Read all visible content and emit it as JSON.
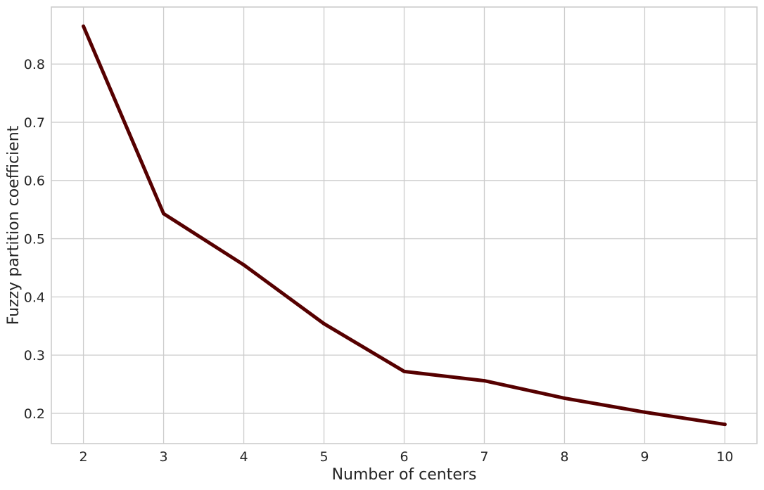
{
  "chart_data": {
    "type": "line",
    "title": "",
    "xlabel": "Number of centers",
    "ylabel": "Fuzzy partition coefficient",
    "x": [
      2,
      3,
      4,
      5,
      6,
      7,
      8,
      9,
      10
    ],
    "series": [
      {
        "values": [
          0.865,
          0.543,
          0.455,
          0.354,
          0.272,
          0.256,
          0.226,
          0.202,
          0.181
        ],
        "color": "#560000"
      }
    ],
    "xticks": [
      2,
      3,
      4,
      5,
      6,
      7,
      8,
      9,
      10
    ],
    "xtick_labels": [
      "2",
      "3",
      "4",
      "5",
      "6",
      "7",
      "8",
      "9",
      "10"
    ],
    "yticks": [
      0.2,
      0.3,
      0.4,
      0.5,
      0.6,
      0.7,
      0.8
    ],
    "ytick_labels": [
      "0.2",
      "0.3",
      "0.4",
      "0.5",
      "0.6",
      "0.7",
      "0.8"
    ],
    "xlim": [
      1.6,
      10.4
    ],
    "ylim": [
      0.148,
      0.898
    ],
    "grid": true,
    "legend": "none",
    "colors": {
      "line": "#560000",
      "grid": "#cccccc",
      "frame": "#cccccc",
      "text": "#262626",
      "background": "#ffffff"
    }
  }
}
